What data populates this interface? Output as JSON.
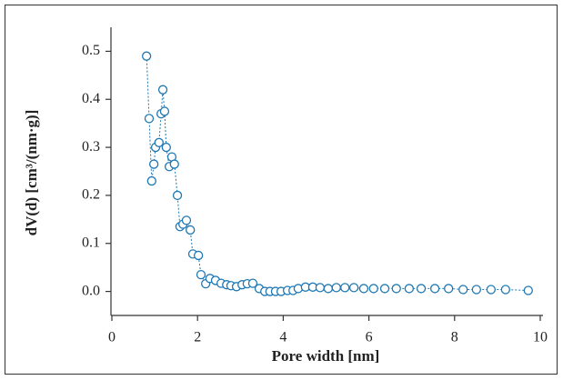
{
  "chart_data": {
    "type": "scatter",
    "x_label": "Pore width [nm]",
    "y_label": "dV(d) [cm³/(nm·g)]",
    "color": "#1f78b4",
    "x": [
      0.81,
      0.87,
      0.93,
      0.98,
      1.02,
      1.1,
      1.15,
      1.19,
      1.23,
      1.27,
      1.34,
      1.4,
      1.46,
      1.53,
      1.59,
      1.66,
      1.74,
      1.83,
      1.89,
      2.02,
      2.08,
      2.19,
      2.29,
      2.42,
      2.55,
      2.68,
      2.78,
      2.91,
      3.04,
      3.16,
      3.29,
      3.44,
      3.57,
      3.69,
      3.82,
      3.95,
      4.1,
      4.23,
      4.35,
      4.52,
      4.69,
      4.86,
      5.05,
      5.24,
      5.44,
      5.65,
      5.88,
      6.11,
      6.37,
      6.64,
      6.94,
      7.22,
      7.54,
      7.86,
      8.2,
      8.51,
      8.85,
      9.19,
      9.72
    ],
    "values": [
      0.49,
      0.36,
      0.23,
      0.265,
      0.3,
      0.31,
      0.37,
      0.42,
      0.375,
      0.3,
      0.26,
      0.28,
      0.265,
      0.2,
      0.135,
      0.14,
      0.148,
      0.128,
      0.078,
      0.075,
      0.035,
      0.016,
      0.027,
      0.023,
      0.017,
      0.014,
      0.012,
      0.01,
      0.014,
      0.016,
      0.017,
      0.006,
      0.0,
      0.0,
      0.0,
      0.0,
      0.002,
      0.002,
      0.006,
      0.009,
      0.009,
      0.008,
      0.006,
      0.008,
      0.008,
      0.008,
      0.006,
      0.006,
      0.006,
      0.006,
      0.006,
      0.006,
      0.006,
      0.006,
      0.004,
      0.004,
      0.004,
      0.004,
      0.002
    ],
    "xlim": [
      0,
      10
    ],
    "ylim": [
      -0.05,
      0.55
    ],
    "xticks": [
      0,
      2,
      4,
      6,
      8,
      10
    ],
    "yticks": [
      {
        "value": 0,
        "label": "0.0"
      },
      0.1,
      0.2,
      0.3,
      0.4,
      0.5
    ]
  }
}
